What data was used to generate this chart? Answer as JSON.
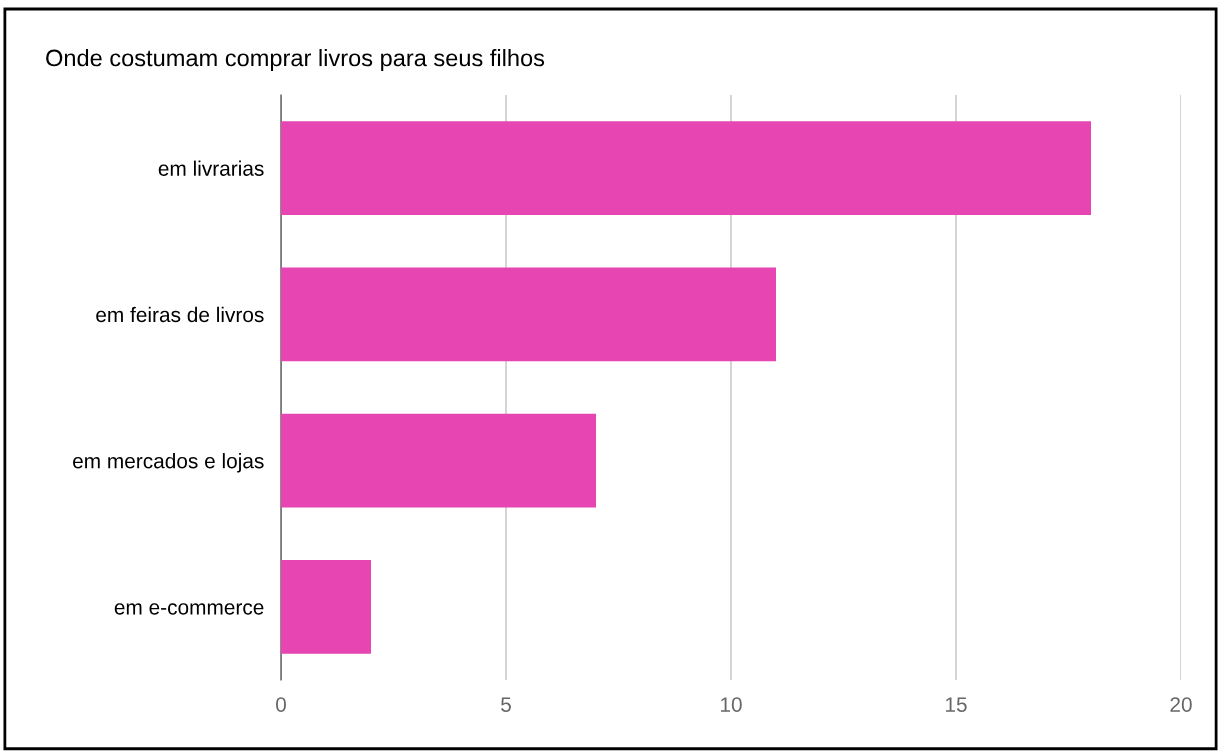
{
  "chart_data": {
    "type": "bar",
    "orientation": "horizontal",
    "title": "Onde costumam comprar livros para seus filhos",
    "categories": [
      "em livrarias",
      "em feiras de livros",
      "em mercados e lojas",
      "em e-commerce"
    ],
    "values": [
      18,
      11,
      7,
      2
    ],
    "color": "#e645b2",
    "xlim": [
      0,
      20
    ],
    "xticks": [
      0,
      5,
      10,
      15,
      20
    ],
    "grid": "x"
  }
}
